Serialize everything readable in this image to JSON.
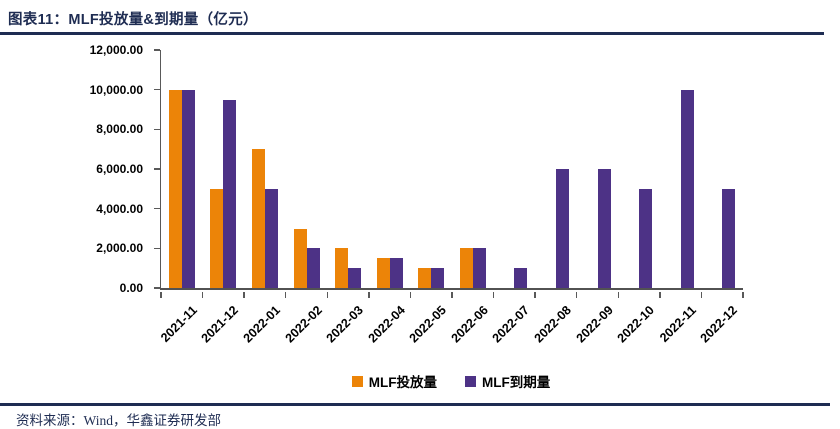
{
  "header": {
    "title": "图表11：MLF投放量&到期量（亿元）"
  },
  "footer": {
    "source": "资料来源：Wind，华鑫证券研发部"
  },
  "colors": {
    "accent_navy": "#1E2C52",
    "axis_gray": "#595959",
    "label_black": "#000000",
    "mlf_injection_orange": "#EC8408",
    "mlf_maturity_purple": "#4D3286"
  },
  "chart_data": {
    "type": "bar",
    "title": "MLF投放量&到期量（亿元）",
    "xlabel": "",
    "ylabel": "",
    "ylim": [
      0,
      12000
    ],
    "y_tick_step": 2000,
    "y_tick_labels": [
      "0.00",
      "2,000.00",
      "4,000.00",
      "6,000.00",
      "8,000.00",
      "10,000.00",
      "12,000.00"
    ],
    "grid": false,
    "legend_position": "bottom",
    "categories": [
      "2021-11",
      "2021-12",
      "2022-01",
      "2022-02",
      "2022-03",
      "2022-04",
      "2022-05",
      "2022-06",
      "2022-07",
      "2022-08",
      "2022-09",
      "2022-10",
      "2022-11",
      "2022-12"
    ],
    "series": [
      {
        "id": "mlf-injection",
        "name": "MLF投放量",
        "color": "#EC8408",
        "values": [
          10000,
          5000,
          7000,
          3000,
          2000,
          1500,
          1000,
          2000,
          0,
          0,
          0,
          0,
          0,
          0
        ]
      },
      {
        "id": "mlf-maturity",
        "name": "MLF到期量",
        "color": "#4D3286",
        "values": [
          10000,
          9500,
          5000,
          2000,
          1000,
          1500,
          1000,
          2000,
          1000,
          6000,
          6000,
          5000,
          10000,
          5000
        ]
      }
    ]
  }
}
